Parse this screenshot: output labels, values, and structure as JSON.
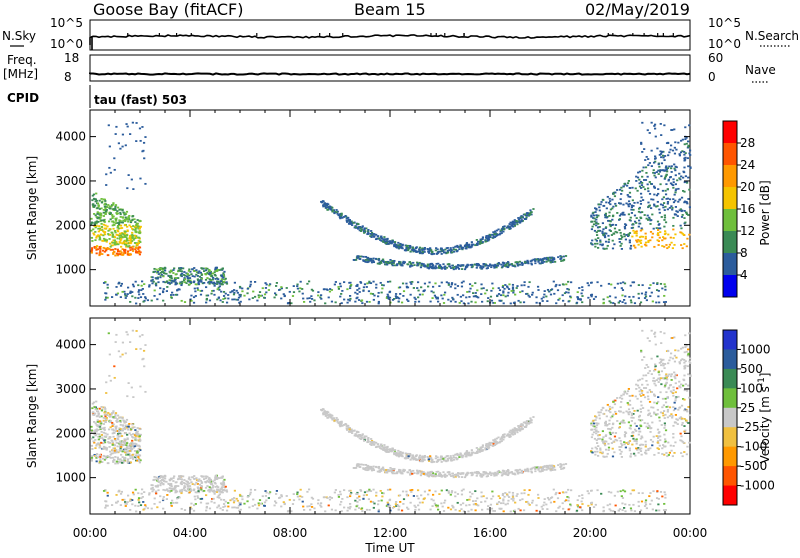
{
  "header": {
    "station": "Goose Bay (fitACF)",
    "beam": "Beam 15",
    "date": "02/May/2019"
  },
  "strips": {
    "nsky_label": "N.Sky",
    "nsearch_label": "N.Search",
    "nsky_ticks": [
      "10^5",
      "10^0"
    ],
    "nsearch_ticks": [
      "10^5",
      "10^0"
    ],
    "freq_label": "Freq.",
    "freq_unit": "[MHz]",
    "freq_ticks": [
      "18",
      "8"
    ],
    "nave_label": "Nave",
    "nave_ticks": [
      "60",
      "0"
    ],
    "cpid_label": "CPID",
    "cpid_value": "tau (fast) 503"
  },
  "chart_data": [
    {
      "type": "heatmap",
      "title": "Power",
      "ylabel": "Slant Range [km]",
      "xlabel": "Time UT",
      "x_ticks": [
        "00:00",
        "04:00",
        "08:00",
        "12:00",
        "16:00",
        "20:00",
        "00:00"
      ],
      "xlim": [
        0,
        24
      ],
      "y_ticks": [
        1000,
        2000,
        3000,
        4000
      ],
      "ylim": [
        180,
        4600
      ],
      "colorbar": {
        "label": "Power [dB]",
        "ticks": [
          "28",
          "24",
          "20",
          "16",
          "12",
          "8",
          "4"
        ],
        "colors": [
          "#ff0000",
          "#ff5500",
          "#ff9900",
          "#f5c400",
          "#6fbf3c",
          "#3a8a55",
          "#2b5c9c",
          "#0000ee"
        ]
      },
      "regions": [
        {
          "t0": 0.0,
          "t1": 2.0,
          "r0": 1150,
          "r1": 2900,
          "level": "strong"
        },
        {
          "t0": 2.3,
          "t1": 5.5,
          "r0": 700,
          "r1": 1000,
          "level": "medium"
        },
        {
          "t0": 9.0,
          "t1": 17.5,
          "r0": 1000,
          "r1": 2600,
          "level": "weak"
        },
        {
          "t0": 20.0,
          "t1": 24.0,
          "r0": 1400,
          "r1": 4200,
          "level": "strong"
        }
      ]
    },
    {
      "type": "heatmap",
      "title": "Velocity",
      "ylabel": "Slant Range [km]",
      "xlabel": "Time UT",
      "x_ticks": [
        "00:00",
        "04:00",
        "08:00",
        "12:00",
        "16:00",
        "20:00",
        "00:00"
      ],
      "xlim": [
        0,
        24
      ],
      "y_ticks": [
        1000,
        2000,
        3000,
        4000
      ],
      "ylim": [
        180,
        4600
      ],
      "colorbar": {
        "label": "Velocity [m s",
        "label_sup": "-1",
        "label_end": "]",
        "ticks": [
          "1000",
          "500",
          "100",
          "25",
          "-25",
          "-100",
          "-500",
          "-1000"
        ],
        "colors": [
          "#2233cc",
          "#2b5c9c",
          "#3a8a55",
          "#6fbf3c",
          "#c8c8c8",
          "#f0c040",
          "#ff9900",
          "#ff5500",
          "#ff0000"
        ]
      }
    }
  ],
  "x_axis_label": "Time UT"
}
